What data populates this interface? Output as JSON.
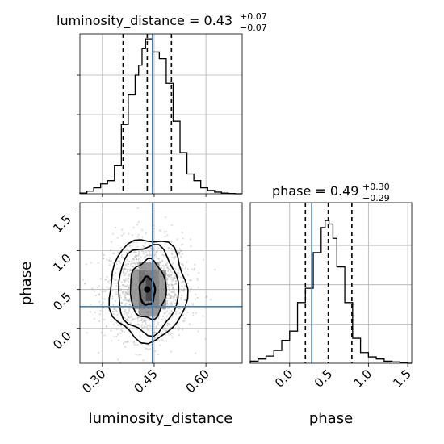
{
  "chart_data": {
    "type": "corner",
    "parameters": [
      "luminosity_distance",
      "phase"
    ],
    "truth_color": "#4682b4",
    "grid": true,
    "marginals": [
      {
        "parameter": "luminosity_distance",
        "title_main": "luminosity_distance = 0.43",
        "title_plus": "+0.07",
        "title_minus": "−0.07",
        "median": 0.43,
        "quantile_low": 0.36,
        "quantile_high": 0.5,
        "truth": 0.445,
        "bin_edges": [
          0.235,
          0.255,
          0.275,
          0.295,
          0.315,
          0.335,
          0.355,
          0.375,
          0.395,
          0.405,
          0.415,
          0.425,
          0.435,
          0.445,
          0.465,
          0.485,
          0.505,
          0.525,
          0.545,
          0.565,
          0.585,
          0.605,
          0.625,
          0.645,
          0.665,
          0.685,
          0.705
        ],
        "counts": [
          2,
          8,
          18,
          30,
          40,
          85,
          210,
          300,
          360,
          390,
          440,
          470,
          470,
          430,
          410,
          335,
          220,
          125,
          60,
          40,
          18,
          10,
          5,
          2,
          1,
          0
        ],
        "ylim": [
          0,
          485
        ],
        "xlim": [
          0.235,
          0.705
        ]
      },
      {
        "parameter": "phase",
        "title_main": "phase = 0.49",
        "title_plus": "+0.30",
        "title_minus": "−0.29",
        "median": 0.49,
        "quantile_low": 0.2,
        "quantile_high": 0.79,
        "truth": 0.28,
        "bin_edges": [
          -0.5,
          -0.4,
          -0.3,
          -0.2,
          -0.1,
          0.0,
          0.1,
          0.2,
          0.3,
          0.4,
          0.45,
          0.5,
          0.55,
          0.6,
          0.65,
          0.7,
          0.8,
          0.9,
          1.0,
          1.1,
          1.2,
          1.3,
          1.4,
          1.5,
          1.55
        ],
        "counts": [
          3,
          6,
          10,
          18,
          32,
          45,
          85,
          105,
          155,
          190,
          200,
          195,
          175,
          135,
          135,
          85,
          35,
          15,
          9,
          6,
          3,
          2,
          1,
          0
        ],
        "ylim": [
          0,
          225
        ],
        "xlim": [
          -0.5,
          1.55
        ]
      }
    ],
    "joint": {
      "x_parameter": "luminosity_distance",
      "y_parameter": "phase",
      "xlim": [
        0.235,
        0.705
      ],
      "ylim": [
        -0.45,
        1.62
      ],
      "truth_x": 0.445,
      "truth_y": 0.28,
      "peak_x": 0.43,
      "peak_y": 0.5,
      "density_cells": [
        {
          "x0": 0.385,
          "x1": 0.405,
          "y0": 0.25,
          "y1": 0.75,
          "level": 0.45
        },
        {
          "x0": 0.465,
          "x1": 0.485,
          "y0": 0.25,
          "y1": 0.75,
          "level": 0.45
        },
        {
          "x0": 0.405,
          "x1": 0.465,
          "y0": 0.15,
          "y1": 0.25,
          "level": 0.45
        },
        {
          "x0": 0.405,
          "x1": 0.465,
          "y0": 0.75,
          "y1": 0.85,
          "level": 0.45
        },
        {
          "x0": 0.405,
          "x1": 0.425,
          "y0": 0.25,
          "y1": 0.75,
          "level": 0.62
        },
        {
          "x0": 0.445,
          "x1": 0.465,
          "y0": 0.25,
          "y1": 0.75,
          "level": 0.55
        },
        {
          "x0": 0.425,
          "x1": 0.445,
          "y0": 0.25,
          "y1": 0.35,
          "level": 0.58
        },
        {
          "x0": 0.425,
          "x1": 0.445,
          "y0": 0.65,
          "y1": 0.75,
          "level": 0.58
        },
        {
          "x0": 0.425,
          "x1": 0.445,
          "y0": 0.35,
          "y1": 0.65,
          "level": 0.82
        }
      ],
      "contours": [
        {
          "rx": 0.022,
          "ry": 0.18,
          "cx": 0.43,
          "cy": 0.48
        },
        {
          "rx": 0.052,
          "ry": 0.38,
          "cx": 0.432,
          "cy": 0.5
        },
        {
          "rx": 0.087,
          "ry": 0.57,
          "cx": 0.432,
          "cy": 0.5
        },
        {
          "rx": 0.112,
          "ry": 0.66,
          "cx": 0.432,
          "cy": 0.5
        }
      ]
    },
    "x_ticks_luminosity_distance": [
      "0.30",
      "0.45",
      "0.60"
    ],
    "x_tick_values_luminosity_distance": [
      0.3,
      0.45,
      0.6
    ],
    "y_ticks_phase_joint": [
      "0.0",
      "0.5",
      "1.0",
      "1.5"
    ],
    "y_tick_values_phase_joint": [
      0.0,
      0.5,
      1.0,
      1.5
    ],
    "x_ticks_phase": [
      "0.0",
      "0.5",
      "1.0",
      "1.5"
    ],
    "x_tick_values_phase": [
      0.0,
      0.5,
      1.0,
      1.5
    ],
    "xlabel_joint": "luminosity_distance",
    "ylabel_joint": "phase",
    "xlabel_phase": "phase"
  }
}
